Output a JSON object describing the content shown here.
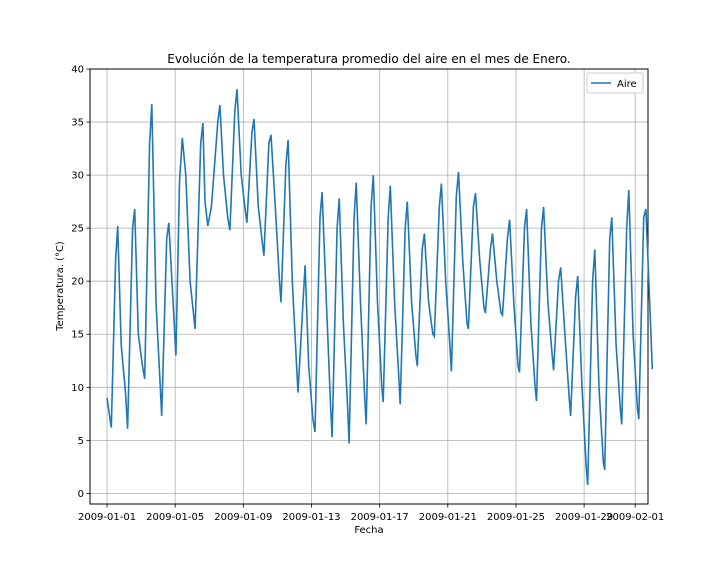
{
  "chart_data": {
    "type": "line",
    "title": "Evolución de la temperatura promedio del aire en el mes de Enero.",
    "xlabel": "Fecha",
    "ylabel": "Temperatura. (°C)",
    "ylim": [
      -1,
      40
    ],
    "xlim": [
      "2008-12-31T00:00",
      "2009-02-01T18:00"
    ],
    "yticks": [
      0,
      5,
      10,
      15,
      20,
      25,
      30,
      35,
      40
    ],
    "xticks": [
      "2009-01-01",
      "2009-01-05",
      "2009-01-09",
      "2009-01-13",
      "2009-01-17",
      "2009-01-21",
      "2009-01-25",
      "2009-01-29",
      "2009-02-01"
    ],
    "grid": true,
    "legend_position": "top-right",
    "color": "#1f77b4",
    "series": [
      {
        "name": "Aire",
        "points": [
          [
            "2009-01-01T00:00",
            9.0
          ],
          [
            "2009-01-01T06:00",
            6.2
          ],
          [
            "2009-01-01T12:00",
            22.0
          ],
          [
            "2009-01-01T15:00",
            25.2
          ],
          [
            "2009-01-01T20:00",
            14.0
          ],
          [
            "2009-01-02T02:00",
            9.5
          ],
          [
            "2009-01-02T05:00",
            6.1
          ],
          [
            "2009-01-02T12:00",
            25.0
          ],
          [
            "2009-01-02T15:00",
            26.8
          ],
          [
            "2009-01-02T20:00",
            15.0
          ],
          [
            "2009-01-03T02:00",
            12.0
          ],
          [
            "2009-01-03T05:00",
            10.8
          ],
          [
            "2009-01-03T12:00",
            33.0
          ],
          [
            "2009-01-03T15:00",
            36.7
          ],
          [
            "2009-01-03T21:00",
            18.0
          ],
          [
            "2009-01-04T03:00",
            10.0
          ],
          [
            "2009-01-04T05:00",
            7.3
          ],
          [
            "2009-01-04T12:00",
            24.0
          ],
          [
            "2009-01-04T15:00",
            25.5
          ],
          [
            "2009-01-04T21:00",
            18.0
          ],
          [
            "2009-01-05T01:00",
            13.0
          ],
          [
            "2009-01-05T06:00",
            29.3
          ],
          [
            "2009-01-05T10:00",
            33.5
          ],
          [
            "2009-01-05T15:00",
            30.0
          ],
          [
            "2009-01-05T21:00",
            20.0
          ],
          [
            "2009-01-06T04:00",
            15.5
          ],
          [
            "2009-01-06T12:00",
            33.0
          ],
          [
            "2009-01-06T15:00",
            34.9
          ],
          [
            "2009-01-06T18:00",
            27.5
          ],
          [
            "2009-01-06T22:00",
            25.2
          ],
          [
            "2009-01-07T03:00",
            27.0
          ],
          [
            "2009-01-07T12:00",
            35.0
          ],
          [
            "2009-01-07T15:00",
            36.6
          ],
          [
            "2009-01-07T20:00",
            30.0
          ],
          [
            "2009-01-08T02:00",
            26.0
          ],
          [
            "2009-01-08T05:00",
            24.8
          ],
          [
            "2009-01-08T12:00",
            36.0
          ],
          [
            "2009-01-08T15:00",
            38.1
          ],
          [
            "2009-01-08T21:00",
            30.0
          ],
          [
            "2009-01-09T03:00",
            26.5
          ],
          [
            "2009-01-09T05:00",
            25.5
          ],
          [
            "2009-01-09T12:00",
            34.0
          ],
          [
            "2009-01-09T15:00",
            35.3
          ],
          [
            "2009-01-09T21:00",
            27.0
          ],
          [
            "2009-01-10T03:00",
            23.5
          ],
          [
            "2009-01-10T05:00",
            22.4
          ],
          [
            "2009-01-10T12:00",
            33.0
          ],
          [
            "2009-01-10T15:00",
            33.8
          ],
          [
            "2009-01-10T21:00",
            27.0
          ],
          [
            "2009-01-11T03:00",
            20.0
          ],
          [
            "2009-01-11T05:00",
            18.0
          ],
          [
            "2009-01-11T12:00",
            31.0
          ],
          [
            "2009-01-11T15:00",
            33.3
          ],
          [
            "2009-01-11T21:00",
            20.0
          ],
          [
            "2009-01-12T03:00",
            12.0
          ],
          [
            "2009-01-12T05:00",
            9.5
          ],
          [
            "2009-01-12T12:00",
            18.0
          ],
          [
            "2009-01-12T15:00",
            21.5
          ],
          [
            "2009-01-12T20:00",
            12.0
          ],
          [
            "2009-01-13T02:00",
            7.0
          ],
          [
            "2009-01-13T05:00",
            5.8
          ],
          [
            "2009-01-13T12:00",
            26.0
          ],
          [
            "2009-01-13T15:00",
            28.4
          ],
          [
            "2009-01-13T21:00",
            18.0
          ],
          [
            "2009-01-14T03:00",
            8.0
          ],
          [
            "2009-01-14T05:00",
            5.3
          ],
          [
            "2009-01-14T12:00",
            25.0
          ],
          [
            "2009-01-14T15:00",
            27.8
          ],
          [
            "2009-01-14T21:00",
            16.0
          ],
          [
            "2009-01-15T03:00",
            8.0
          ],
          [
            "2009-01-15T05:00",
            4.7
          ],
          [
            "2009-01-15T12:00",
            26.0
          ],
          [
            "2009-01-15T15:00",
            29.3
          ],
          [
            "2009-01-15T21:00",
            18.0
          ],
          [
            "2009-01-16T03:00",
            9.0
          ],
          [
            "2009-01-16T05:00",
            6.5
          ],
          [
            "2009-01-16T12:00",
            27.0
          ],
          [
            "2009-01-16T15:00",
            30.0
          ],
          [
            "2009-01-16T21:00",
            18.0
          ],
          [
            "2009-01-17T03:00",
            10.0
          ],
          [
            "2009-01-17T05:00",
            8.6
          ],
          [
            "2009-01-17T12:00",
            26.0
          ],
          [
            "2009-01-17T15:00",
            29.0
          ],
          [
            "2009-01-17T21:00",
            18.0
          ],
          [
            "2009-01-18T03:00",
            11.0
          ],
          [
            "2009-01-18T05:00",
            8.4
          ],
          [
            "2009-01-18T12:00",
            25.0
          ],
          [
            "2009-01-18T15:00",
            27.5
          ],
          [
            "2009-01-18T21:00",
            18.0
          ],
          [
            "2009-01-19T03:00",
            13.0
          ],
          [
            "2009-01-19T05:00",
            12.0
          ],
          [
            "2009-01-19T12:00",
            23.0
          ],
          [
            "2009-01-19T15:00",
            24.5
          ],
          [
            "2009-01-19T21:00",
            18.0
          ],
          [
            "2009-01-20T03:00",
            15.0
          ],
          [
            "2009-01-20T05:00",
            14.8
          ],
          [
            "2009-01-20T12:00",
            27.0
          ],
          [
            "2009-01-20T15:00",
            29.2
          ],
          [
            "2009-01-20T21:00",
            20.0
          ],
          [
            "2009-01-21T03:00",
            14.0
          ],
          [
            "2009-01-21T05:00",
            11.5
          ],
          [
            "2009-01-21T12:00",
            28.0
          ],
          [
            "2009-01-21T15:00",
            30.3
          ],
          [
            "2009-01-21T21:00",
            22.0
          ],
          [
            "2009-01-22T03:00",
            16.0
          ],
          [
            "2009-01-22T05:00",
            15.5
          ],
          [
            "2009-01-22T12:00",
            27.0
          ],
          [
            "2009-01-22T15:00",
            28.3
          ],
          [
            "2009-01-22T21:00",
            22.0
          ],
          [
            "2009-01-23T03:00",
            17.5
          ],
          [
            "2009-01-23T05:00",
            17.0
          ],
          [
            "2009-01-23T12:00",
            23.0
          ],
          [
            "2009-01-23T15:00",
            24.5
          ],
          [
            "2009-01-23T21:00",
            20.0
          ],
          [
            "2009-01-24T03:00",
            17.0
          ],
          [
            "2009-01-24T05:00",
            16.8
          ],
          [
            "2009-01-24T12:00",
            24.0
          ],
          [
            "2009-01-24T15:00",
            25.8
          ],
          [
            "2009-01-24T21:00",
            18.0
          ],
          [
            "2009-01-25T03:00",
            12.0
          ],
          [
            "2009-01-25T05:00",
            11.4
          ],
          [
            "2009-01-25T12:00",
            25.0
          ],
          [
            "2009-01-25T15:00",
            26.8
          ],
          [
            "2009-01-25T21:00",
            16.0
          ],
          [
            "2009-01-26T03:00",
            10.0
          ],
          [
            "2009-01-26T05:00",
            8.7
          ],
          [
            "2009-01-26T12:00",
            25.0
          ],
          [
            "2009-01-26T15:00",
            27.0
          ],
          [
            "2009-01-26T21:00",
            18.0
          ],
          [
            "2009-01-27T03:00",
            13.0
          ],
          [
            "2009-01-27T05:00",
            11.6
          ],
          [
            "2009-01-27T12:00",
            20.0
          ],
          [
            "2009-01-27T15:00",
            21.3
          ],
          [
            "2009-01-27T21:00",
            15.0
          ],
          [
            "2009-01-28T03:00",
            9.0
          ],
          [
            "2009-01-28T05:00",
            7.3
          ],
          [
            "2009-01-28T12:00",
            18.5
          ],
          [
            "2009-01-28T15:00",
            20.5
          ],
          [
            "2009-01-28T21:00",
            10.0
          ],
          [
            "2009-01-29T03:00",
            2.5
          ],
          [
            "2009-01-29T05:00",
            0.8
          ],
          [
            "2009-01-29T12:00",
            20.0
          ],
          [
            "2009-01-29T15:00",
            23.0
          ],
          [
            "2009-01-29T21:00",
            10.0
          ],
          [
            "2009-01-30T03:00",
            3.0
          ],
          [
            "2009-01-30T05:00",
            2.2
          ],
          [
            "2009-01-30T12:00",
            24.0
          ],
          [
            "2009-01-30T15:00",
            26.0
          ],
          [
            "2009-01-30T21:00",
            14.0
          ],
          [
            "2009-01-31T03:00",
            8.0
          ],
          [
            "2009-01-31T05:00",
            6.5
          ],
          [
            "2009-01-31T12:00",
            25.0
          ],
          [
            "2009-01-31T15:00",
            28.6
          ],
          [
            "2009-01-31T21:00",
            15.0
          ],
          [
            "2009-02-01T03:00",
            8.0
          ],
          [
            "2009-02-01T05:00",
            7.0
          ],
          [
            "2009-02-01T12:00",
            26.0
          ],
          [
            "2009-02-01T15:00",
            26.8
          ],
          [
            "2009-02-01T21:00",
            17.0
          ],
          [
            "2009-02-02T00:00",
            11.7
          ]
        ]
      }
    ]
  }
}
